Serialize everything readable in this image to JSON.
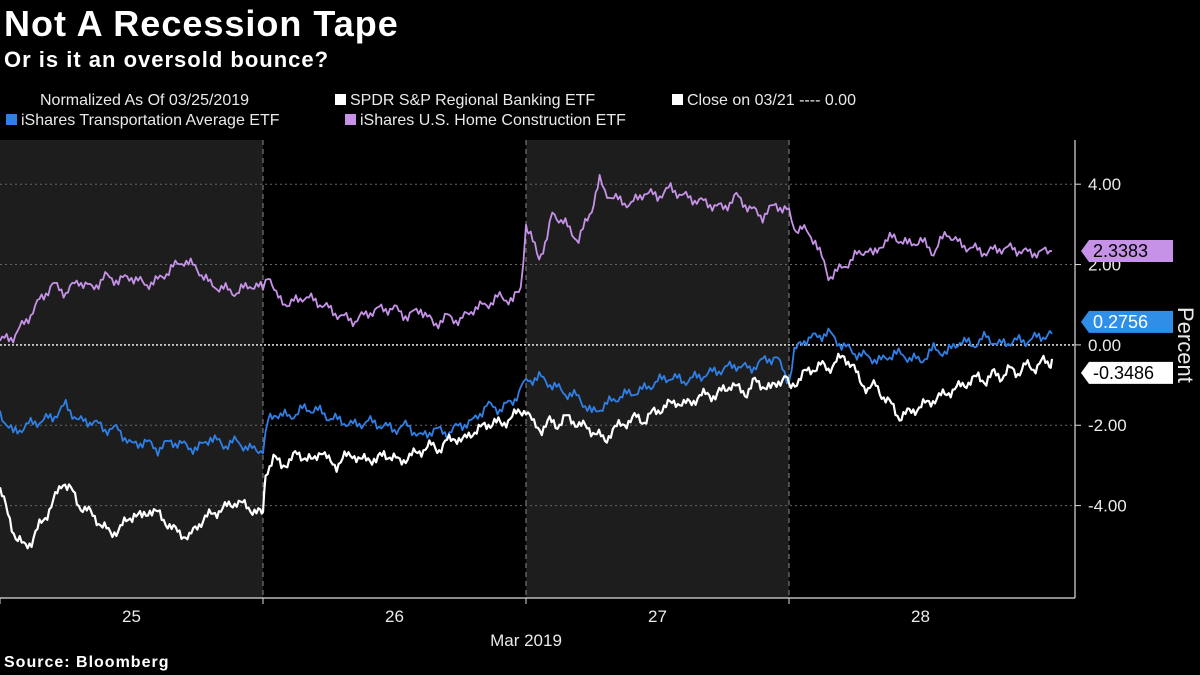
{
  "header": {
    "title": "Not A Recession Tape",
    "subtitle": "Or is it an oversold bounce?"
  },
  "legend": {
    "normalized": "Normalized As Of 03/25/2019",
    "regional_banking": "SPDR S&P Regional Banking ETF",
    "close_line": "Close on 03/21 ---- 0.00",
    "transportation": "iShares Transportation Average ETF",
    "home_construction": "iShares U.S. Home Construction ETF"
  },
  "footer": {
    "source": "Source: Bloomberg"
  },
  "chart_data": {
    "type": "line",
    "title": "Not A Recession Tape",
    "subtitle": "Or is it an oversold bounce?",
    "xlabel": "Mar 2019",
    "ylabel": "Percent",
    "x_ticks": [
      "25",
      "26",
      "27",
      "28"
    ],
    "y_ticks": [
      "4.00",
      "2.00",
      "0.00",
      "-2.00",
      "-4.00"
    ],
    "y_tick_values": [
      4,
      2,
      0,
      -2,
      -4
    ],
    "ylim": [
      -6.3,
      5.1
    ],
    "xlim": [
      0,
      4.1
    ],
    "grid": true,
    "shaded_sessions": [
      [
        0,
        1
      ],
      [
        2,
        3
      ]
    ],
    "reference_line": {
      "label": "Close on 03/21",
      "value": 0
    },
    "series": [
      {
        "name": "iShares U.S. Home Construction ETF",
        "color": "#c592e8",
        "last_value": "2.3383",
        "x": [
          0.0,
          0.05,
          0.1,
          0.15,
          0.2,
          0.25,
          0.3,
          0.35,
          0.4,
          0.45,
          0.5,
          0.55,
          0.6,
          0.65,
          0.7,
          0.75,
          0.8,
          0.85,
          0.9,
          0.95,
          1.0,
          1.02,
          1.05,
          1.1,
          1.15,
          1.2,
          1.25,
          1.3,
          1.35,
          1.4,
          1.45,
          1.5,
          1.55,
          1.6,
          1.65,
          1.7,
          1.75,
          1.8,
          1.85,
          1.9,
          1.95,
          1.98,
          2.0,
          2.01,
          2.05,
          2.08,
          2.1,
          2.15,
          2.2,
          2.25,
          2.28,
          2.3,
          2.35,
          2.4,
          2.45,
          2.5,
          2.55,
          2.6,
          2.65,
          2.7,
          2.75,
          2.8,
          2.85,
          2.9,
          2.95,
          3.0,
          3.02,
          3.05,
          3.1,
          3.15,
          3.2,
          3.25,
          3.3,
          3.32,
          3.35,
          3.4,
          3.45,
          3.5,
          3.55,
          3.6,
          3.65,
          3.7,
          3.75,
          3.8,
          3.85,
          3.9,
          3.95,
          4.0
        ],
        "y": [
          0.1,
          0.2,
          0.6,
          1.1,
          1.5,
          1.3,
          1.6,
          1.4,
          1.7,
          1.6,
          1.7,
          1.5,
          1.6,
          1.9,
          2.1,
          1.9,
          1.5,
          1.4,
          1.3,
          1.5,
          1.4,
          1.8,
          1.2,
          1.0,
          1.2,
          1.1,
          0.9,
          0.7,
          0.6,
          0.8,
          0.9,
          0.9,
          0.7,
          0.9,
          0.5,
          0.7,
          0.6,
          0.9,
          1.0,
          1.2,
          1.1,
          1.4,
          3.0,
          2.8,
          2.2,
          2.6,
          3.3,
          3.0,
          2.6,
          3.4,
          4.1,
          3.8,
          3.6,
          3.5,
          3.8,
          3.7,
          3.9,
          3.7,
          3.6,
          3.5,
          3.4,
          3.7,
          3.4,
          3.2,
          3.5,
          3.3,
          2.9,
          2.9,
          2.6,
          1.7,
          1.9,
          2.2,
          2.4,
          2.2,
          2.5,
          2.7,
          2.5,
          2.6,
          2.3,
          2.8,
          2.5,
          2.4,
          2.3,
          2.4,
          2.4,
          2.3,
          2.3,
          2.3383
        ]
      },
      {
        "name": "iShares Transportation Average ETF",
        "color": "#2f7fe6",
        "last_value": "0.2756",
        "x": [
          0.0,
          0.05,
          0.1,
          0.15,
          0.2,
          0.25,
          0.3,
          0.35,
          0.4,
          0.45,
          0.5,
          0.55,
          0.6,
          0.65,
          0.7,
          0.75,
          0.8,
          0.85,
          0.9,
          0.95,
          1.0,
          1.02,
          1.05,
          1.1,
          1.15,
          1.2,
          1.25,
          1.3,
          1.35,
          1.4,
          1.45,
          1.5,
          1.55,
          1.6,
          1.65,
          1.7,
          1.75,
          1.8,
          1.85,
          1.9,
          1.95,
          1.98,
          2.0,
          2.05,
          2.1,
          2.15,
          2.2,
          2.25,
          2.3,
          2.35,
          2.4,
          2.45,
          2.5,
          2.55,
          2.6,
          2.65,
          2.7,
          2.75,
          2.8,
          2.85,
          2.9,
          2.95,
          3.0,
          3.02,
          3.05,
          3.1,
          3.15,
          3.2,
          3.25,
          3.3,
          3.35,
          3.4,
          3.45,
          3.5,
          3.55,
          3.6,
          3.65,
          3.7,
          3.75,
          3.8,
          3.85,
          3.9,
          3.95,
          4.0
        ],
        "y": [
          -1.7,
          -2.2,
          -2.0,
          -1.9,
          -1.8,
          -1.5,
          -1.9,
          -1.9,
          -2.1,
          -2.1,
          -2.5,
          -2.4,
          -2.6,
          -2.4,
          -2.5,
          -2.6,
          -2.3,
          -2.5,
          -2.4,
          -2.6,
          -2.6,
          -1.9,
          -1.7,
          -1.8,
          -1.6,
          -1.6,
          -1.8,
          -1.9,
          -2.0,
          -1.9,
          -2.0,
          -2.1,
          -2.0,
          -2.3,
          -2.1,
          -2.2,
          -2.0,
          -1.9,
          -1.5,
          -1.6,
          -1.4,
          -1.1,
          -0.9,
          -0.8,
          -1.0,
          -1.2,
          -1.3,
          -1.7,
          -1.5,
          -1.3,
          -1.2,
          -1.1,
          -0.9,
          -0.8,
          -0.9,
          -0.8,
          -0.7,
          -0.6,
          -0.5,
          -0.6,
          -0.4,
          -0.3,
          -0.9,
          -0.2,
          0.1,
          0.2,
          0.3,
          0.0,
          -0.2,
          -0.3,
          -0.4,
          -0.2,
          -0.3,
          -0.4,
          -0.1,
          -0.2,
          0.1,
          0.0,
          0.2,
          0.0,
          0.1,
          0.1,
          0.2,
          0.2756
        ]
      },
      {
        "name": "SPDR S&P Regional Banking ETF",
        "color": "#ffffff",
        "last_value": "-0.3486",
        "x": [
          0.0,
          0.03,
          0.06,
          0.09,
          0.12,
          0.15,
          0.18,
          0.21,
          0.24,
          0.27,
          0.3,
          0.33,
          0.36,
          0.39,
          0.42,
          0.45,
          0.48,
          0.51,
          0.54,
          0.57,
          0.6,
          0.63,
          0.66,
          0.69,
          0.72,
          0.75,
          0.78,
          0.81,
          0.84,
          0.87,
          0.9,
          0.93,
          0.96,
          0.99,
          1.0,
          1.01,
          1.04,
          1.07,
          1.1,
          1.13,
          1.16,
          1.19,
          1.22,
          1.25,
          1.28,
          1.31,
          1.34,
          1.37,
          1.4,
          1.43,
          1.46,
          1.49,
          1.52,
          1.55,
          1.58,
          1.61,
          1.64,
          1.67,
          1.7,
          1.73,
          1.76,
          1.79,
          1.82,
          1.85,
          1.88,
          1.91,
          1.94,
          1.97,
          2.0,
          2.03,
          2.06,
          2.09,
          2.12,
          2.15,
          2.18,
          2.21,
          2.24,
          2.27,
          2.3,
          2.33,
          2.36,
          2.39,
          2.42,
          2.45,
          2.48,
          2.51,
          2.54,
          2.57,
          2.6,
          2.63,
          2.66,
          2.69,
          2.72,
          2.75,
          2.78,
          2.81,
          2.84,
          2.87,
          2.9,
          2.93,
          2.96,
          2.99,
          3.0,
          3.03,
          3.06,
          3.09,
          3.12,
          3.15,
          3.18,
          3.21,
          3.24,
          3.27,
          3.3,
          3.33,
          3.36,
          3.39,
          3.42,
          3.45,
          3.48,
          3.51,
          3.54,
          3.57,
          3.6,
          3.63,
          3.66,
          3.69,
          3.72,
          3.75,
          3.78,
          3.81,
          3.84,
          3.87,
          3.9,
          3.93,
          3.96,
          3.99,
          4.0
        ],
        "y": [
          -3.6,
          -4.2,
          -4.8,
          -5.0,
          -4.9,
          -4.5,
          -4.2,
          -3.8,
          -3.4,
          -3.6,
          -4.0,
          -4.1,
          -4.3,
          -4.5,
          -4.7,
          -4.6,
          -4.4,
          -4.2,
          -4.3,
          -4.1,
          -4.2,
          -4.4,
          -4.6,
          -4.7,
          -4.8,
          -4.5,
          -4.3,
          -4.2,
          -4.1,
          -4.0,
          -3.9,
          -4.0,
          -4.1,
          -4.2,
          -4.2,
          -3.2,
          -2.8,
          -3.0,
          -2.9,
          -2.7,
          -2.8,
          -2.9,
          -2.6,
          -2.9,
          -3.0,
          -2.8,
          -2.7,
          -2.9,
          -2.8,
          -2.9,
          -2.7,
          -2.8,
          -2.9,
          -2.8,
          -2.7,
          -2.6,
          -2.5,
          -2.6,
          -2.4,
          -2.3,
          -2.4,
          -2.2,
          -2.1,
          -2.0,
          -1.9,
          -2.0,
          -1.8,
          -1.7,
          -1.6,
          -2.0,
          -2.1,
          -1.9,
          -2.0,
          -1.8,
          -1.9,
          -2.0,
          -2.1,
          -2.2,
          -2.4,
          -2.1,
          -2.0,
          -1.9,
          -1.8,
          -1.9,
          -1.7,
          -1.6,
          -1.5,
          -1.4,
          -1.5,
          -1.4,
          -1.3,
          -1.2,
          -1.3,
          -1.1,
          -1.0,
          -1.1,
          -1.2,
          -0.9,
          -1.0,
          -1.1,
          -0.9,
          -0.8,
          -1.1,
          -0.9,
          -0.7,
          -0.6,
          -0.5,
          -0.6,
          -0.4,
          -0.3,
          -0.5,
          -0.9,
          -1.1,
          -1.0,
          -1.3,
          -1.5,
          -1.8,
          -1.7,
          -1.6,
          -1.5,
          -1.4,
          -1.3,
          -1.2,
          -1.1,
          -1.0,
          -0.9,
          -0.8,
          -0.9,
          -0.7,
          -0.8,
          -0.6,
          -0.7,
          -0.5,
          -0.6,
          -0.4,
          -0.5,
          -0.3486
        ]
      }
    ]
  }
}
